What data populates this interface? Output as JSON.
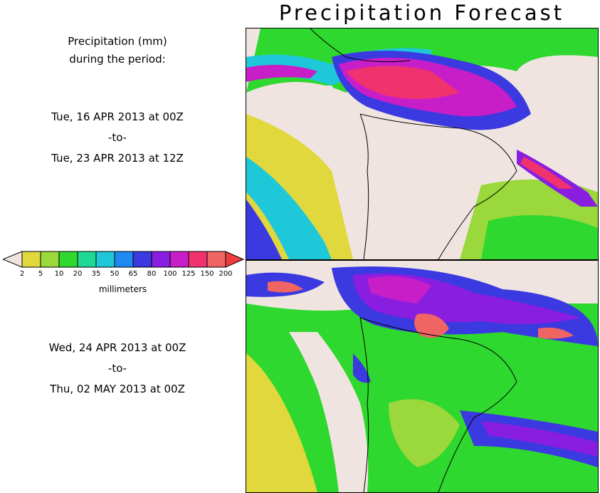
{
  "title": "Precipitation Forecast",
  "legend_heading": [
    "Precipitation (mm)",
    "during the period:"
  ],
  "period1": {
    "start": "Tue, 16 APR 2013 at 00Z",
    "sep": "-to-",
    "end": "Tue, 23 APR 2013 at 12Z"
  },
  "period2": {
    "start": "Wed, 24 APR 2013 at 00Z",
    "sep": "-to-",
    "end": "Thu, 02 MAY 2013 at 00Z"
  },
  "colorbar": {
    "unit": "millimeters",
    "ticks": [
      "2",
      "5",
      "10",
      "20",
      "35",
      "50",
      "65",
      "80",
      "100",
      "125",
      "150",
      "200"
    ],
    "colors": [
      "#e0d83c",
      "#9ad83c",
      "#2ed82e",
      "#1ed896",
      "#1ec8d8",
      "#1e8af0",
      "#3a3ae0",
      "#8a1ee0",
      "#c81ec8",
      "#f0326e",
      "#f06464"
    ],
    "under_color": "#f0e4e0",
    "over_color": "#f03c3c"
  }
}
